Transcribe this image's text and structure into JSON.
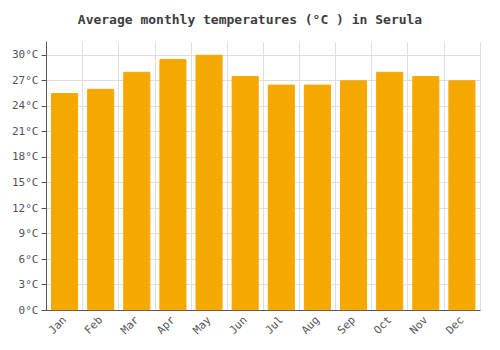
{
  "chart_data": {
    "type": "bar",
    "title": "Average monthly temperatures (°C ) in Serula",
    "categories": [
      "Jan",
      "Feb",
      "Mar",
      "Apr",
      "May",
      "Jun",
      "Jul",
      "Aug",
      "Sep",
      "Oct",
      "Nov",
      "Dec"
    ],
    "values": [
      25.5,
      26.0,
      28.0,
      29.5,
      30.0,
      27.5,
      26.5,
      26.5,
      27.0,
      28.0,
      27.5,
      27.0
    ],
    "color": "#F5A800",
    "ylim": [
      0,
      31.5
    ],
    "yticks": [
      {
        "value": 0,
        "label": "0°C"
      },
      {
        "value": 3,
        "label": "3°C"
      },
      {
        "value": 6,
        "label": "6°C"
      },
      {
        "value": 9,
        "label": "9°C"
      },
      {
        "value": 12,
        "label": "12°C"
      },
      {
        "value": 15,
        "label": "15°C"
      },
      {
        "value": 18,
        "label": "18°C"
      },
      {
        "value": 21,
        "label": "21°C"
      },
      {
        "value": 24,
        "label": "24°C"
      },
      {
        "value": 27,
        "label": "27°C"
      },
      {
        "value": 30,
        "label": "30°C"
      }
    ],
    "grid": true
  }
}
